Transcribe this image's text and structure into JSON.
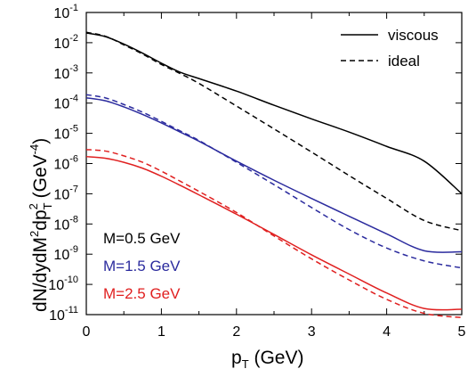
{
  "chart_data": {
    "type": "line",
    "x_axis": {
      "label_main": "p",
      "label_sub": "T",
      "label_unit": " (GeV)",
      "range": [
        0,
        5
      ],
      "ticks": [
        0,
        1,
        2,
        3,
        4,
        5
      ],
      "tick_labels": [
        "0",
        "1",
        "2",
        "3",
        "4",
        "5"
      ]
    },
    "y_axis": {
      "label_main": "dN/dydM",
      "label_sup1": "2",
      "label_mid": "dp",
      "label_sub": "T",
      "label_sup2": "2",
      "label_unit": " (GeV",
      "label_unit_sup": "-4",
      "label_close": ")",
      "scale": "log",
      "range": [
        1e-11,
        0.1
      ],
      "tick_exponents": [
        -11,
        -10,
        -9,
        -8,
        -7,
        -6,
        -5,
        -4,
        -3,
        -2,
        -1
      ],
      "tick_base": "10"
    },
    "legend": {
      "placement": "top-right",
      "entries": [
        {
          "label": "viscous",
          "style": "solid"
        },
        {
          "label": "ideal",
          "style": "dashed"
        }
      ]
    },
    "annotations": [
      {
        "text": "M=0.5 GeV",
        "color": "#000000"
      },
      {
        "text": "M=1.5 GeV",
        "color": "#2b2b9e"
      },
      {
        "text": "M=2.5 GeV",
        "color": "#e02020"
      }
    ],
    "x": [
      0,
      0.25,
      0.5,
      0.75,
      1.0,
      1.25,
      1.5,
      2.0,
      2.5,
      3.0,
      3.5,
      4.0,
      4.5,
      5.0
    ],
    "series": [
      {
        "mass": "0.5",
        "style": "solid",
        "color": "#000000",
        "y": [
          0.021,
          0.016,
          0.009,
          0.0045,
          0.0021,
          0.00105,
          0.00065,
          0.00025,
          8.5e-05,
          3e-05,
          1.1e-05,
          3.7e-06,
          1.2e-06,
          1e-07
        ]
      },
      {
        "mass": "0.5",
        "style": "dashed",
        "color": "#000000",
        "y": [
          0.022,
          0.0165,
          0.0085,
          0.0042,
          0.0019,
          0.00095,
          0.00045,
          8e-05,
          1.4e-05,
          2.4e-06,
          4e-07,
          7e-08,
          1.3e-08,
          6e-09
        ]
      },
      {
        "mass": "1.5",
        "style": "solid",
        "color": "#2b2b9e",
        "y": [
          0.00015,
          0.00012,
          7.5e-05,
          4.2e-05,
          2.2e-05,
          1.1e-05,
          5.5e-06,
          1.2e-06,
          2.8e-07,
          7e-08,
          1.8e-08,
          4.7e-09,
          1.3e-09,
          1.2e-09
        ]
      },
      {
        "mass": "1.5",
        "style": "dashed",
        "color": "#2b2b9e",
        "y": [
          0.00019,
          0.00015,
          9e-05,
          5e-05,
          2.5e-05,
          1.2e-05,
          5.8e-06,
          1.1e-06,
          2e-07,
          3.5e-08,
          6.5e-09,
          1.6e-09,
          6e-10,
          3.5e-10
        ]
      },
      {
        "mass": "2.5",
        "style": "solid",
        "color": "#e02020",
        "y": [
          1.7e-06,
          1.5e-06,
          1.1e-06,
          7e-07,
          3.8e-07,
          1.9e-07,
          9.2e-08,
          2.1e-08,
          4.5e-09,
          9.5e-10,
          2.2e-10,
          5.2e-11,
          1.6e-11,
          1.5e-11
        ]
      },
      {
        "mass": "2.5",
        "style": "dashed",
        "color": "#e02020",
        "y": [
          2.9e-06,
          2.6e-06,
          1.8e-06,
          1.1e-06,
          5.6e-07,
          2.6e-07,
          1.2e-07,
          2.4e-08,
          4e-09,
          7e-10,
          1.4e-10,
          3.2e-11,
          1.1e-11,
          8e-12
        ]
      }
    ]
  }
}
